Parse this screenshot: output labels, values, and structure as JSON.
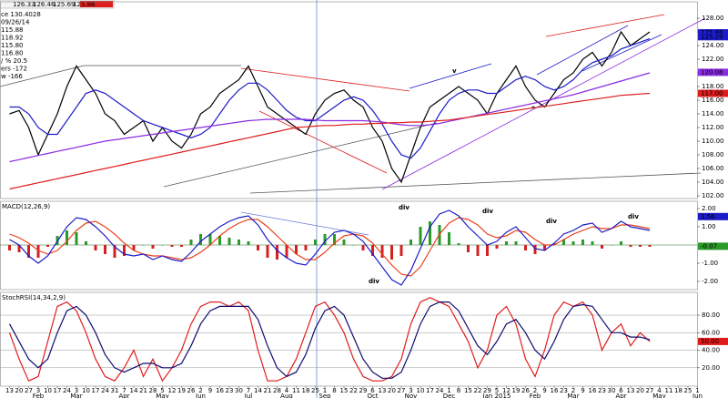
{
  "header": {
    "quote": [
      "126.33",
      "126.46",
      "125.69",
      "125.86"
    ],
    "info": [
      "ce 130.4028",
      "09/26/14",
      "115.88",
      "118.92",
      "115.80",
      "116.80",
      "/ % 20.5",
      "ers -172",
      "w -166"
    ]
  },
  "chart_data": [
    {
      "type": "line",
      "ylim": [
        101.6,
        130.4
      ],
      "yticks": [
        {
          "value": 102,
          "label": "102.00"
        },
        {
          "value": 104,
          "label": "104.00"
        },
        {
          "value": 106,
          "label": "106.00"
        },
        {
          "value": 108,
          "label": "108.00"
        },
        {
          "value": 110,
          "label": "110.00"
        },
        {
          "value": 112,
          "label": "112.00"
        },
        {
          "value": 114,
          "label": "114.00"
        },
        {
          "value": 116,
          "label": "116.00"
        },
        {
          "value": 118,
          "label": "118.00"
        },
        {
          "value": 120,
          "label": "120.00"
        },
        {
          "value": 122,
          "label": "122.00"
        },
        {
          "value": 124,
          "label": "124.00"
        },
        {
          "value": 126,
          "label": "126.00"
        },
        {
          "value": 128,
          "label": "128.00"
        }
      ],
      "grid": false,
      "series": [
        {
          "color": "#000000",
          "style": "line",
          "values": [
            114,
            114.5,
            112,
            108,
            111,
            114,
            118,
            121,
            119,
            117,
            114,
            113,
            111,
            112,
            113,
            110,
            112,
            110,
            109,
            111,
            114,
            115,
            117,
            118,
            119,
            121,
            118,
            115,
            114,
            113,
            112,
            111,
            114,
            116,
            117,
            117.5,
            116,
            115,
            112,
            110,
            106,
            104,
            108,
            112,
            115,
            116,
            117,
            118,
            117,
            116,
            114,
            117,
            119,
            121,
            118,
            116,
            115,
            117,
            119,
            120,
            122,
            123,
            121,
            123,
            126,
            124,
            125,
            126,
            null,
            null,
            null,
            null,
            null
          ]
        },
        {
          "color": "#1c1cc8",
          "style": "line",
          "values": [
            115,
            115,
            114,
            112,
            111,
            111,
            113,
            115,
            117,
            117.5,
            117,
            116,
            115,
            114,
            113,
            112.5,
            112,
            111.5,
            111,
            110.5,
            111,
            112,
            114,
            116,
            117.5,
            118.5,
            118.5,
            117.5,
            116,
            114.5,
            113.5,
            113,
            113,
            114,
            115,
            116,
            116.5,
            116,
            114.5,
            112.5,
            110,
            108,
            107.5,
            109,
            111.5,
            114,
            116,
            117,
            117.5,
            117.5,
            117,
            117,
            118,
            119,
            119.5,
            119,
            118,
            117.5,
            118,
            119,
            120.5,
            121.5,
            122,
            122.5,
            123.5,
            124,
            124.5,
            125,
            null,
            null,
            null,
            null,
            null
          ]
        },
        {
          "color": "#8a2be2",
          "style": "line",
          "values": [
            107,
            107.3,
            107.6,
            107.9,
            108.2,
            108.5,
            108.8,
            109.1,
            109.4,
            109.7,
            110,
            110.2,
            110.4,
            110.6,
            110.8,
            111,
            111.2,
            111.4,
            111.6,
            111.8,
            112,
            112.2,
            112.4,
            112.6,
            112.8,
            113,
            113.1,
            113.2,
            113.2,
            113.2,
            113.2,
            113.2,
            113.1,
            113,
            113,
            113,
            113,
            113,
            112.9,
            112.8,
            112.6,
            112.4,
            112.3,
            112.3,
            112.4,
            112.6,
            112.9,
            113.2,
            113.5,
            113.8,
            114.1,
            114.4,
            114.7,
            115,
            115.3,
            115.6,
            115.9,
            116.2,
            116.5,
            116.8,
            117.2,
            117.6,
            118,
            118.4,
            118.8,
            119.2,
            119.6,
            120,
            null,
            null,
            null,
            null,
            null
          ]
        },
        {
          "color": "#dd1c1c",
          "style": "line",
          "values": [
            103,
            103.3,
            103.6,
            103.9,
            104.2,
            104.5,
            104.8,
            105.1,
            105.4,
            105.7,
            106,
            106.3,
            106.6,
            106.9,
            107.2,
            107.5,
            107.8,
            108.1,
            108.4,
            108.7,
            109,
            109.3,
            109.6,
            109.9,
            110.2,
            110.5,
            110.8,
            111.1,
            111.4,
            111.7,
            112,
            112.1,
            112.2,
            112.3,
            112.3,
            112.4,
            112.5,
            112.5,
            112.6,
            112.6,
            112.7,
            112.7,
            112.8,
            112.8,
            112.9,
            113,
            113.1,
            113.3,
            113.5,
            113.7,
            113.9,
            114.1,
            114.3,
            114.5,
            114.7,
            114.9,
            115.1,
            115.3,
            115.5,
            115.7,
            115.9,
            116.1,
            116.3,
            116.5,
            116.7,
            116.8,
            116.9,
            117,
            null,
            null,
            null,
            null,
            null
          ]
        }
      ],
      "badges": [
        {
          "value": 125.86,
          "label": "125.86",
          "color": "#1c1cc8"
        },
        {
          "value": 125.29,
          "label": "125.29",
          "color": "#1c1cc8"
        },
        {
          "value": 120.08,
          "label": "120.08",
          "color": "#8a2be2"
        },
        {
          "value": 117,
          "label": "117.00",
          "color": "#dd1c1c"
        }
      ],
      "annotations": [
        {
          "text": "v",
          "color": "#1c1cc8"
        },
        {
          "text": "^",
          "color": "#1c1cc8"
        }
      ]
    },
    {
      "type": "line",
      "title": "MACD(12,26,9)",
      "ylim": [
        -2.45,
        2.4
      ],
      "yticks": [
        {
          "value": -2,
          "label": "-2.00"
        },
        {
          "value": -1,
          "label": "-1.00"
        },
        {
          "value": 1,
          "label": "1.00"
        },
        {
          "value": 2,
          "label": "2.00"
        }
      ],
      "grid": false,
      "series": [
        {
          "color": "#2a9a2a",
          "negative_color": "#d42020",
          "style": "bar",
          "values": [
            -0.3,
            -0.4,
            -0.7,
            -0.7,
            -0.1,
            0.5,
            0.8,
            0.7,
            0.2,
            -0.3,
            -0.5,
            -0.7,
            -0.6,
            -0.3,
            0,
            -0.2,
            0,
            -0.1,
            -0.1,
            0.3,
            0.6,
            0.6,
            0.5,
            0.4,
            0.3,
            0.2,
            -0.3,
            -0.7,
            -0.8,
            -0.7,
            -0.5,
            -0.3,
            0.3,
            0.6,
            0.6,
            0.3,
            0,
            -0.3,
            -0.6,
            -0.7,
            -0.8,
            -0.6,
            0.3,
            1.0,
            1.3,
            1.1,
            0.7,
            0.1,
            -0.4,
            -0.6,
            -0.6,
            -0.2,
            0.2,
            0.2,
            -0.3,
            -0.5,
            -0.3,
            0.1,
            0.3,
            0.2,
            0.3,
            0.2,
            -0.2,
            0,
            0.2,
            -0.1,
            -0.1,
            -0.1,
            null,
            null,
            null,
            null,
            null
          ]
        },
        {
          "color": "#e8401c",
          "style": "line",
          "values": [
            0.6,
            0.4,
            0.1,
            -0.3,
            -0.5,
            -0.3,
            0.2,
            0.8,
            1.2,
            1.3,
            1.0,
            0.6,
            0.1,
            -0.3,
            -0.5,
            -0.6,
            -0.6,
            -0.7,
            -0.8,
            -0.7,
            -0.4,
            0,
            0.5,
            0.9,
            1.2,
            1.4,
            1.4,
            1.0,
            0.5,
            0,
            -0.5,
            -0.8,
            -0.8,
            -0.4,
            0.1,
            0.5,
            0.6,
            0.5,
            0.1,
            -0.5,
            -1.1,
            -1.6,
            -1.7,
            -1.2,
            -0.3,
            0.6,
            1.2,
            1.5,
            1.4,
            1.1,
            0.6,
            0.4,
            0.5,
            0.8,
            0.7,
            0.3,
            0,
            0,
            0.3,
            0.6,
            0.8,
            1.0,
            0.9,
            0.9,
            1.1,
            1.1,
            1.0,
            0.9,
            null,
            null,
            null,
            null,
            null
          ]
        },
        {
          "color": "#1c1cc8",
          "style": "line",
          "values": [
            0.3,
            0,
            -0.6,
            -1.0,
            -0.6,
            0.2,
            1.0,
            1.5,
            1.4,
            1.0,
            0.5,
            -0.1,
            -0.5,
            -0.6,
            -0.5,
            -0.8,
            -0.6,
            -0.8,
            -0.9,
            -0.4,
            0.2,
            0.6,
            1.0,
            1.3,
            1.5,
            1.6,
            1.1,
            0.3,
            -0.3,
            -0.7,
            -1.0,
            -1.1,
            -0.5,
            0.2,
            0.7,
            0.8,
            0.6,
            0.2,
            -0.5,
            -1.2,
            -1.9,
            -2.2,
            -1.4,
            -0.2,
            1.0,
            1.7,
            1.9,
            1.6,
            1.0,
            0.5,
            0,
            0.2,
            0.7,
            1.0,
            0.4,
            -0.2,
            -0.3,
            0.1,
            0.6,
            0.8,
            1.1,
            1.2,
            0.7,
            0.9,
            1.3,
            1.0,
            0.9,
            0.8,
            null,
            null,
            null,
            null,
            null
          ]
        }
      ],
      "badges": [
        {
          "value": 1.56,
          "label": "1.56",
          "color": "#1c1cc8"
        },
        {
          "value": -0.07,
          "label": "-0.07",
          "color": "#2a9a2a"
        }
      ],
      "annotations": [
        {
          "text": "div",
          "color": "#1a8a1a"
        },
        {
          "text": "div",
          "color": "#d42020"
        },
        {
          "text": "div",
          "color": "#d42020"
        },
        {
          "text": "div",
          "color": "#d42020"
        },
        {
          "text": "div",
          "color": "#000000"
        }
      ]
    },
    {
      "type": "line",
      "title": "StochRSI(14,34,2,9)",
      "ylim": [
        -1,
        106
      ],
      "yticks": [
        {
          "value": 20,
          "label": "20.00"
        },
        {
          "value": 40,
          "label": "40.00"
        },
        {
          "value": 60,
          "label": "60.00"
        },
        {
          "value": 80,
          "label": "80.00"
        }
      ],
      "grid": true,
      "categories": [
        "13",
        "20",
        "27",
        "3",
        "10",
        "17",
        "24",
        "3",
        "10",
        "17",
        "24",
        "31",
        "7",
        "14",
        "21",
        "28",
        "5",
        "12",
        "19",
        "26",
        "2",
        "9",
        "16",
        "23",
        "30",
        "7",
        "14",
        "21",
        "28",
        "4",
        "11",
        "18",
        "25",
        "1",
        "8",
        "15",
        "22",
        "29",
        "6",
        "13",
        "20",
        "27",
        "3",
        "10",
        "17",
        "24",
        "1",
        "8",
        "15",
        "22",
        "29",
        "5",
        "12",
        "19",
        "26",
        "2",
        "9",
        "16",
        "23",
        "2",
        "9",
        "16",
        "23",
        "30",
        "6",
        "13",
        "20",
        "27",
        "4",
        "11",
        "18",
        "25",
        "1"
      ],
      "month_labels": [
        {
          "value": 3,
          "label": "Feb"
        },
        {
          "value": 7,
          "label": "Mar"
        },
        {
          "value": 12,
          "label": "Apr"
        },
        {
          "value": 16,
          "label": "May"
        },
        {
          "value": 20,
          "label": "Jun"
        },
        {
          "value": 25,
          "label": "Jul"
        },
        {
          "value": 29,
          "label": "Aug"
        },
        {
          "value": 33,
          "label": "Sep"
        },
        {
          "value": 38,
          "label": "Oct"
        },
        {
          "value": 42,
          "label": "Nov"
        },
        {
          "value": 46,
          "label": "Dec"
        },
        {
          "value": 51,
          "label": "Jan 2015"
        },
        {
          "value": 55,
          "label": "Feb"
        },
        {
          "value": 59,
          "label": "Mar"
        },
        {
          "value": 64,
          "label": "Apr"
        },
        {
          "value": 68,
          "label": "May"
        },
        {
          "value": 72,
          "label": "Jun"
        }
      ],
      "series": [
        {
          "color": "#e01c1c",
          "style": "line",
          "values": [
            60,
            30,
            5,
            10,
            50,
            90,
            95,
            85,
            60,
            30,
            10,
            5,
            20,
            40,
            10,
            30,
            5,
            20,
            40,
            70,
            90,
            95,
            95,
            90,
            95,
            85,
            40,
            5,
            5,
            10,
            30,
            60,
            90,
            95,
            80,
            60,
            30,
            10,
            5,
            5,
            10,
            30,
            70,
            95,
            100,
            95,
            90,
            70,
            50,
            20,
            40,
            80,
            90,
            70,
            30,
            10,
            40,
            80,
            95,
            90,
            95,
            80,
            40,
            60,
            70,
            45,
            60,
            50,
            null,
            null,
            null,
            null,
            null
          ]
        },
        {
          "color": "#0c0c70",
          "style": "line",
          "values": [
            70,
            50,
            30,
            20,
            30,
            60,
            85,
            90,
            80,
            60,
            35,
            20,
            15,
            20,
            25,
            25,
            20,
            20,
            25,
            45,
            70,
            85,
            90,
            90,
            90,
            90,
            75,
            45,
            20,
            10,
            15,
            35,
            65,
            85,
            90,
            80,
            55,
            30,
            15,
            8,
            8,
            15,
            40,
            70,
            90,
            95,
            95,
            85,
            65,
            45,
            35,
            50,
            70,
            75,
            60,
            40,
            30,
            50,
            75,
            90,
            92,
            90,
            75,
            60,
            60,
            55,
            55,
            52,
            null,
            null,
            null,
            null,
            null
          ]
        }
      ],
      "badges": [
        {
          "value": 50,
          "label": "50.00",
          "color": "#e01c1c"
        }
      ]
    }
  ]
}
